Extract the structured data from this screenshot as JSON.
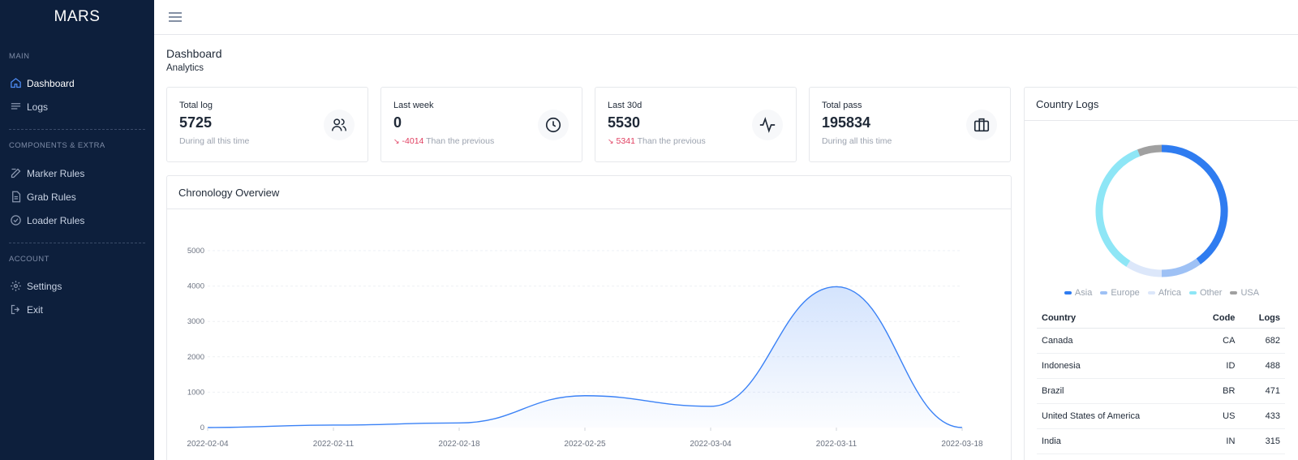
{
  "sidebar": {
    "brand": "MARS",
    "sections": [
      {
        "label": "MAIN",
        "items": [
          {
            "label": "Dashboard",
            "icon": "home-icon",
            "active": true
          },
          {
            "label": "Logs",
            "icon": "list-icon"
          }
        ]
      },
      {
        "label": "COMPONENTS & EXTRA",
        "items": [
          {
            "label": "Marker Rules",
            "icon": "edit-icon"
          },
          {
            "label": "Grab Rules",
            "icon": "document-icon"
          },
          {
            "label": "Loader Rules",
            "icon": "check-circle-icon"
          }
        ]
      },
      {
        "label": "ACCOUNT",
        "items": [
          {
            "label": "Settings",
            "icon": "gear-icon"
          },
          {
            "label": "Exit",
            "icon": "logout-icon"
          }
        ]
      }
    ]
  },
  "page": {
    "title": "Dashboard",
    "subtitle": "Analytics"
  },
  "stats": [
    {
      "label": "Total log",
      "value": "5725",
      "meta_text": "During all this time",
      "icon": "users-icon"
    },
    {
      "label": "Last week",
      "value": "0",
      "delta": "-4014",
      "meta_text": "Than the previous",
      "icon": "clock-icon"
    },
    {
      "label": "Last 30d",
      "value": "5530",
      "delta": "5341",
      "meta_text": "Than the previous",
      "icon": "activity-icon"
    },
    {
      "label": "Total pass",
      "value": "195834",
      "meta_text": "During all this time",
      "icon": "briefcase-icon"
    }
  ],
  "chronology": {
    "title": "Chronology Overview"
  },
  "chart_data": [
    {
      "type": "area",
      "title": "Chronology Overview",
      "x": [
        "2022-02-04",
        "2022-02-11",
        "2022-02-18",
        "2022-02-25",
        "2022-03-04",
        "2022-03-11",
        "2022-03-18"
      ],
      "values": [
        0,
        70,
        130,
        900,
        600,
        3980,
        0
      ],
      "y_ticks": [
        0,
        1000,
        2000,
        3000,
        4000,
        5000
      ],
      "ylim": [
        0,
        5000
      ],
      "grid": true,
      "color": "#3b82f6"
    },
    {
      "type": "pie",
      "title": "Country Logs",
      "categories": [
        "Asia",
        "Europe",
        "Africa",
        "Other",
        "USA"
      ],
      "values": [
        40,
        10,
        9,
        35,
        6
      ],
      "colors": [
        "#2f7cf0",
        "#9ec1f5",
        "#dce7fa",
        "#8ee6f6",
        "#a0a0a0"
      ],
      "legend": "bottom"
    }
  ],
  "country": {
    "title": "Country Logs",
    "columns": [
      "Country",
      "Code",
      "Logs"
    ],
    "rows": [
      {
        "country": "Canada",
        "code": "CA",
        "logs": "682"
      },
      {
        "country": "Indonesia",
        "code": "ID",
        "logs": "488"
      },
      {
        "country": "Brazil",
        "code": "BR",
        "logs": "471"
      },
      {
        "country": "United States of America",
        "code": "US",
        "logs": "433"
      },
      {
        "country": "India",
        "code": "IN",
        "logs": "315"
      }
    ]
  }
}
